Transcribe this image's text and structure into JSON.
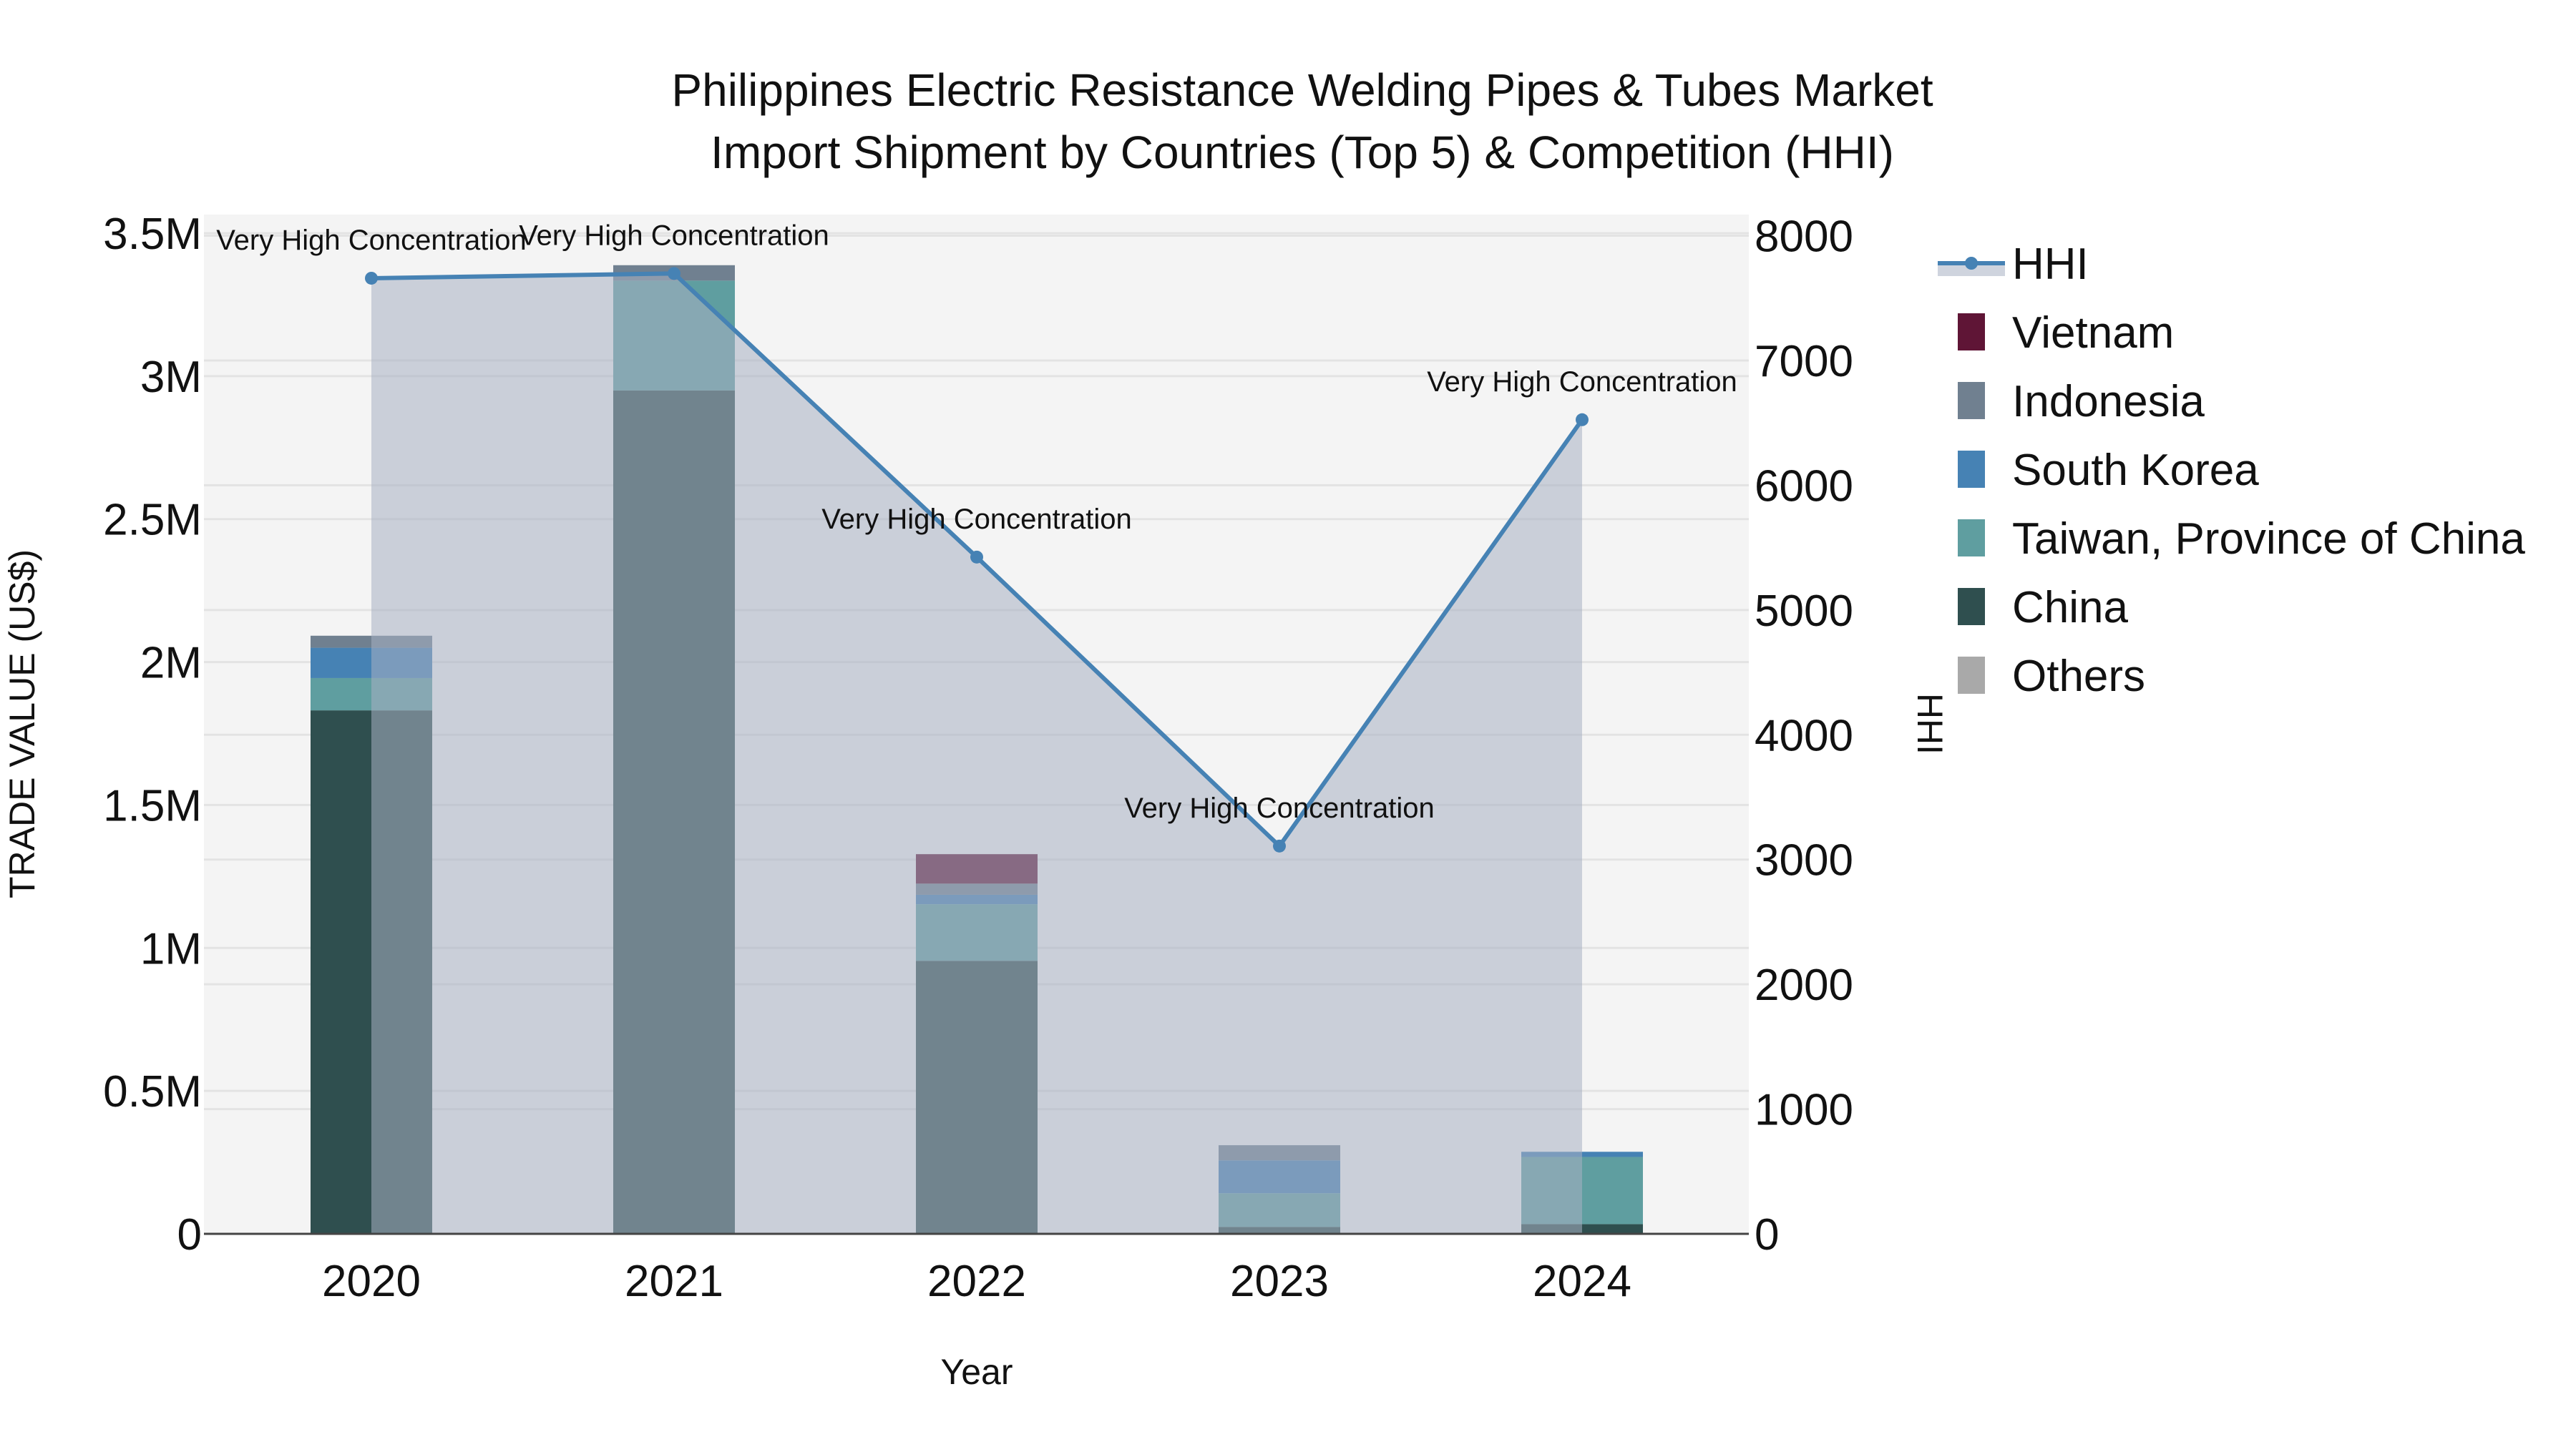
{
  "header": {
    "title_line1": "Philippines Electric Resistance Welding Pipes & Tubes Market",
    "title_line2": "Import Shipment by Countries (Top 5) & Competition (HHI)"
  },
  "axes": {
    "x_title": "Year",
    "y_title": "TRADE VALUE (US$)",
    "y2_title": "HHI",
    "y_ticks": [
      "0",
      "0.5M",
      "1M",
      "1.5M",
      "2M",
      "2.5M",
      "3M",
      "3.5M"
    ],
    "y2_ticks": [
      "0",
      "1000",
      "2000",
      "3000",
      "4000",
      "5000",
      "6000",
      "7000",
      "8000"
    ]
  },
  "colors": {
    "plot_bg": "#f4f4f4",
    "grid": "#e3e3e3",
    "hhi_line": "#4682b4",
    "hhi_fill": "rgba(168,176,194,0.55)",
    "axis_line": "#444444"
  },
  "legend": [
    {
      "label": "HHI",
      "type": "line",
      "color": "#4682b4"
    },
    {
      "label": "Vietnam",
      "type": "box",
      "color": "#5f1536"
    },
    {
      "label": "Indonesia",
      "type": "box",
      "color": "#708090"
    },
    {
      "label": "South Korea",
      "type": "box",
      "color": "#4682b4"
    },
    {
      "label": "Taiwan, Province of China",
      "type": "box",
      "color": "#5f9ea0"
    },
    {
      "label": "China",
      "type": "box",
      "color": "#2f4f4f"
    },
    {
      "label": "Others",
      "type": "box",
      "color": "#a9a9a9"
    }
  ],
  "chart_data": {
    "type": "bar",
    "stacked": true,
    "title": "Philippines Electric Resistance Welding Pipes & Tubes Market Import Shipment by Countries (Top 5) & Competition (HHI)",
    "xlabel": "Year",
    "ylabel": "TRADE VALUE (US$)",
    "y2label": "HHI",
    "ylim": [
      0,
      3500000
    ],
    "y2lim": [
      0,
      8000
    ],
    "grid": true,
    "legend_position": "right",
    "categories": [
      "2020",
      "2021",
      "2022",
      "2023",
      "2024"
    ],
    "series": [
      {
        "name": "China",
        "color": "#2f4f4f",
        "values": [
          1831000,
          2950000,
          955000,
          24000,
          34000
        ]
      },
      {
        "name": "Taiwan, Province of China",
        "color": "#5f9ea0",
        "values": [
          113000,
          384000,
          198000,
          118000,
          235000
        ]
      },
      {
        "name": "South Korea",
        "color": "#4682b4",
        "values": [
          106000,
          0,
          33000,
          115000,
          18000
        ]
      },
      {
        "name": "Indonesia",
        "color": "#708090",
        "values": [
          42000,
          54000,
          39000,
          53000,
          0
        ]
      },
      {
        "name": "Vietnam",
        "color": "#5f1536",
        "values": [
          0,
          0,
          103000,
          0,
          0
        ]
      },
      {
        "name": "Others",
        "color": "#a9a9a9",
        "values": [
          0,
          0,
          0,
          0,
          0
        ]
      }
    ],
    "hhi": {
      "name": "HHI",
      "type": "line+area",
      "axis": "y2",
      "values": [
        7659,
        7697,
        5424,
        3108,
        6525
      ],
      "annotations": [
        "Very High Concentration",
        "Very High Concentration",
        "Very High Concentration",
        "Very High Concentration",
        "Very High Concentration"
      ]
    }
  }
}
